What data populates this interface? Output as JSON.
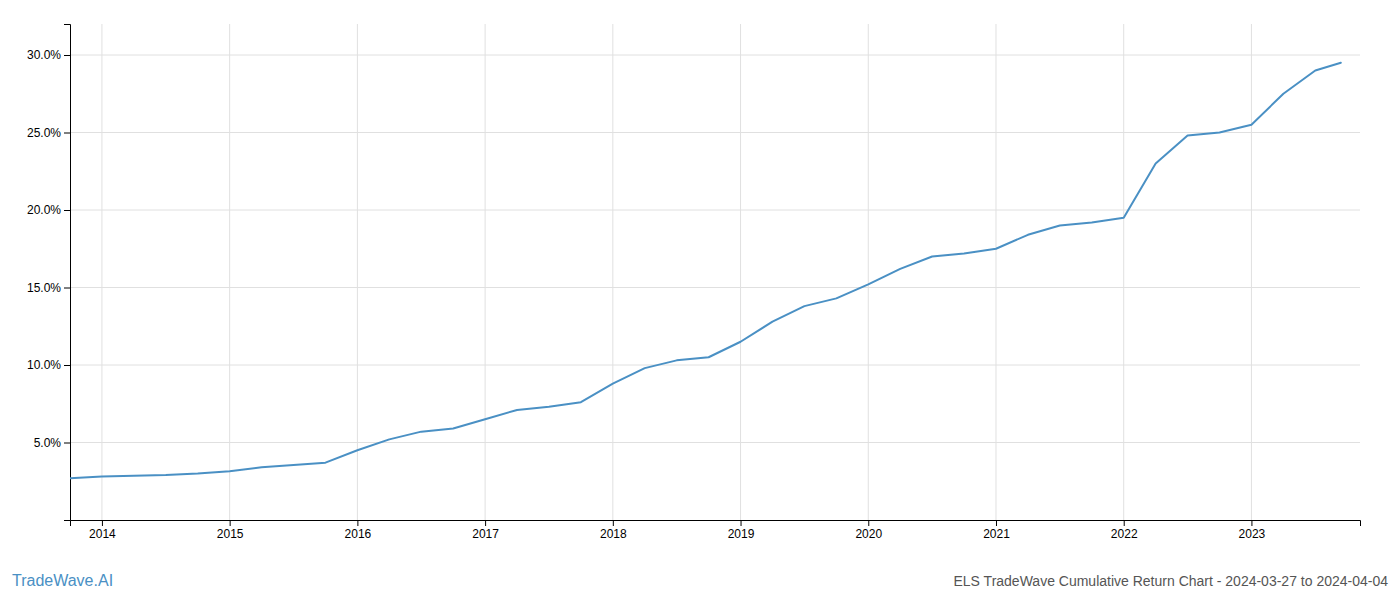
{
  "chart_data": {
    "type": "line",
    "title": "ELS TradeWave Cumulative Return Chart - 2024-03-27 to 2024-04-04",
    "annotations": [
      "TradeWave.AI"
    ],
    "color": "#4a90c4",
    "x": [
      2013.75,
      2014.0,
      2014.25,
      2014.5,
      2014.75,
      2015.0,
      2015.25,
      2015.5,
      2015.75,
      2016.0,
      2016.25,
      2016.5,
      2016.75,
      2017.0,
      2017.25,
      2017.5,
      2017.75,
      2018.0,
      2018.25,
      2018.5,
      2018.75,
      2019.0,
      2019.25,
      2019.5,
      2019.75,
      2020.0,
      2020.25,
      2020.5,
      2020.75,
      2021.0,
      2021.25,
      2021.5,
      2021.75,
      2022.0,
      2022.25,
      2022.5,
      2022.75,
      2023.0,
      2023.25,
      2023.5,
      2023.7
    ],
    "values": [
      2.7,
      2.8,
      2.85,
      2.9,
      3.0,
      3.15,
      3.4,
      3.55,
      3.7,
      4.5,
      5.2,
      5.7,
      5.9,
      6.5,
      7.1,
      7.3,
      7.6,
      8.8,
      9.8,
      10.3,
      10.5,
      11.5,
      12.8,
      13.8,
      14.3,
      15.2,
      16.2,
      17.0,
      17.2,
      17.5,
      18.4,
      19.0,
      19.2,
      19.5,
      23.0,
      24.8,
      25.0,
      25.5,
      27.5,
      29.0,
      29.5
    ],
    "xlim": [
      2013.75,
      2023.85
    ],
    "xticks": [
      2014,
      2015,
      2016,
      2017,
      2018,
      2019,
      2020,
      2021,
      2022,
      2023
    ],
    "ylim": [
      0,
      32
    ],
    "yticks": [
      {
        "value": 5.0,
        "label": "5.0%"
      },
      {
        "value": 10.0,
        "label": "10.0%"
      },
      {
        "value": 15.0,
        "label": "15.0%"
      },
      {
        "value": 20.0,
        "label": "20.0%"
      },
      {
        "value": 25.0,
        "label": "25.0%"
      },
      {
        "value": 30.0,
        "label": "30.0%"
      }
    ],
    "grid": true
  }
}
